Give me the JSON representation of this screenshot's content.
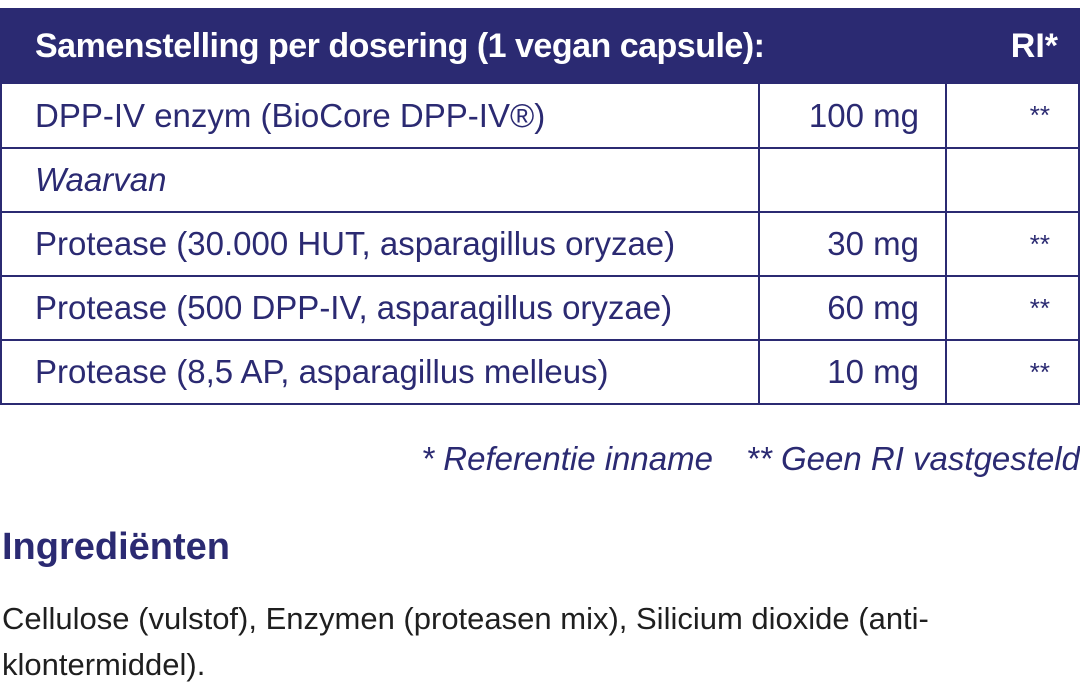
{
  "table": {
    "header": {
      "title": "Samenstelling per dosering (1 vegan capsule):",
      "ri": "RI*"
    },
    "rows": [
      {
        "name": "DPP-IV enzym (BioCore DPP-IV®)",
        "amount": "100 mg",
        "ri": "**"
      },
      {
        "name": "Waarvan",
        "amount": "",
        "ri": ""
      },
      {
        "name": "Protease (30.000 HUT, asparagillus oryzae)",
        "amount": "30 mg",
        "ri": "**"
      },
      {
        "name": "Protease (500 DPP-IV, asparagillus oryzae)",
        "amount": "60 mg",
        "ri": "**"
      },
      {
        "name": "Protease (8,5 AP, asparagillus melleus)",
        "amount": "10 mg",
        "ri": "**"
      }
    ]
  },
  "footnote": {
    "reference": "* Referentie inname",
    "no_ri": "** Geen RI vastgesteld"
  },
  "ingredients": {
    "title": "Ingrediënten",
    "text": "Cellulose (vulstof), Enzymen (proteasen mix), Silicium dioxide (anti-klontermiddel)."
  },
  "colors": {
    "brand_navy": "#2b2a72",
    "body_text": "#1f1f1f"
  }
}
